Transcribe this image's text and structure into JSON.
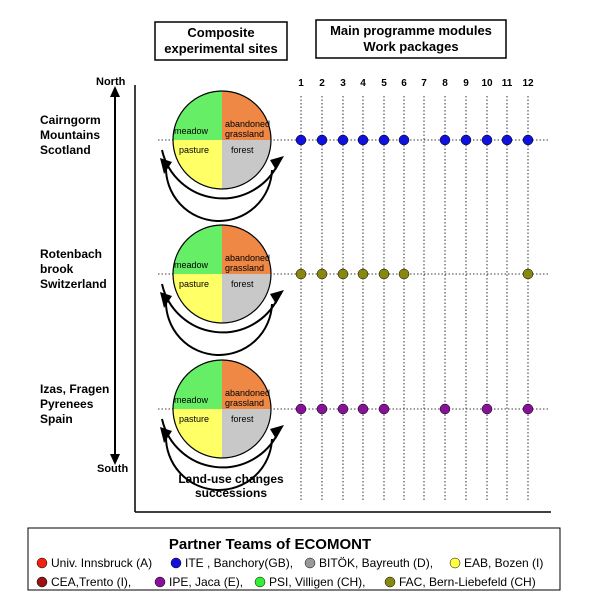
{
  "headers": {
    "sites_line1": "Composite",
    "sites_line2": "experimental sites",
    "modules_line1": "Main programme modules",
    "modules_line2": "Work  packages"
  },
  "axis": {
    "north": "North",
    "south": "South"
  },
  "columns": [
    "1",
    "2",
    "3",
    "4",
    "5",
    "6",
    "7",
    "8",
    "9",
    "10",
    "11",
    "12"
  ],
  "pie_labels": {
    "meadow": "meadow",
    "abandoned1": "abandoned",
    "abandoned2": "grassland",
    "pasture": "pasture",
    "forest": "forest"
  },
  "pie_colors": {
    "meadow": "#66ee66",
    "abandoned": "#ee8844",
    "pasture": "#ffff66",
    "forest": "#c8c8c8"
  },
  "sites": [
    {
      "lines": [
        "Cairngorm",
        "Mountains",
        "Scotland"
      ],
      "color": "#1111dd",
      "work_packages": [
        "1",
        "2",
        "3",
        "4",
        "5",
        "6",
        "8",
        "9",
        "10",
        "11",
        "12"
      ]
    },
    {
      "lines": [
        "Rotenbach",
        "brook",
        "Switzerland"
      ],
      "color": "#888811",
      "work_packages": [
        "1",
        "2",
        "3",
        "4",
        "5",
        "6",
        "12"
      ]
    },
    {
      "lines": [
        "Izas, Fragen",
        "Pyrenees",
        "Spain"
      ],
      "color": "#881199",
      "work_packages": [
        "1",
        "2",
        "3",
        "4",
        "5",
        "8",
        "10",
        "12"
      ]
    }
  ],
  "caption": {
    "line1": "Land-use changes",
    "line2": "successions"
  },
  "legend": {
    "title": "Partner Teams  of  ECOMONT",
    "row1": [
      {
        "label": "Univ. Innsbruck (A)",
        "color": "#ee2211"
      },
      {
        "label": "ITE , Banchory(GB),",
        "color": "#1111dd"
      },
      {
        "label": "BITÖK, Bayreuth (D),",
        "color": "#999999"
      },
      {
        "label": "EAB, Bozen (I)",
        "color": "#ffff44"
      }
    ],
    "row2": [
      {
        "label": "CEA,Trento (I),",
        "color": "#991111"
      },
      {
        "label": "IPE, Jaca (E),",
        "color": "#881199"
      },
      {
        "label": "PSI, Villigen (CH),",
        "color": "#33ee33"
      },
      {
        "label": "FAC, Bern-Liebefeld (CH)",
        "color": "#888811"
      }
    ]
  }
}
